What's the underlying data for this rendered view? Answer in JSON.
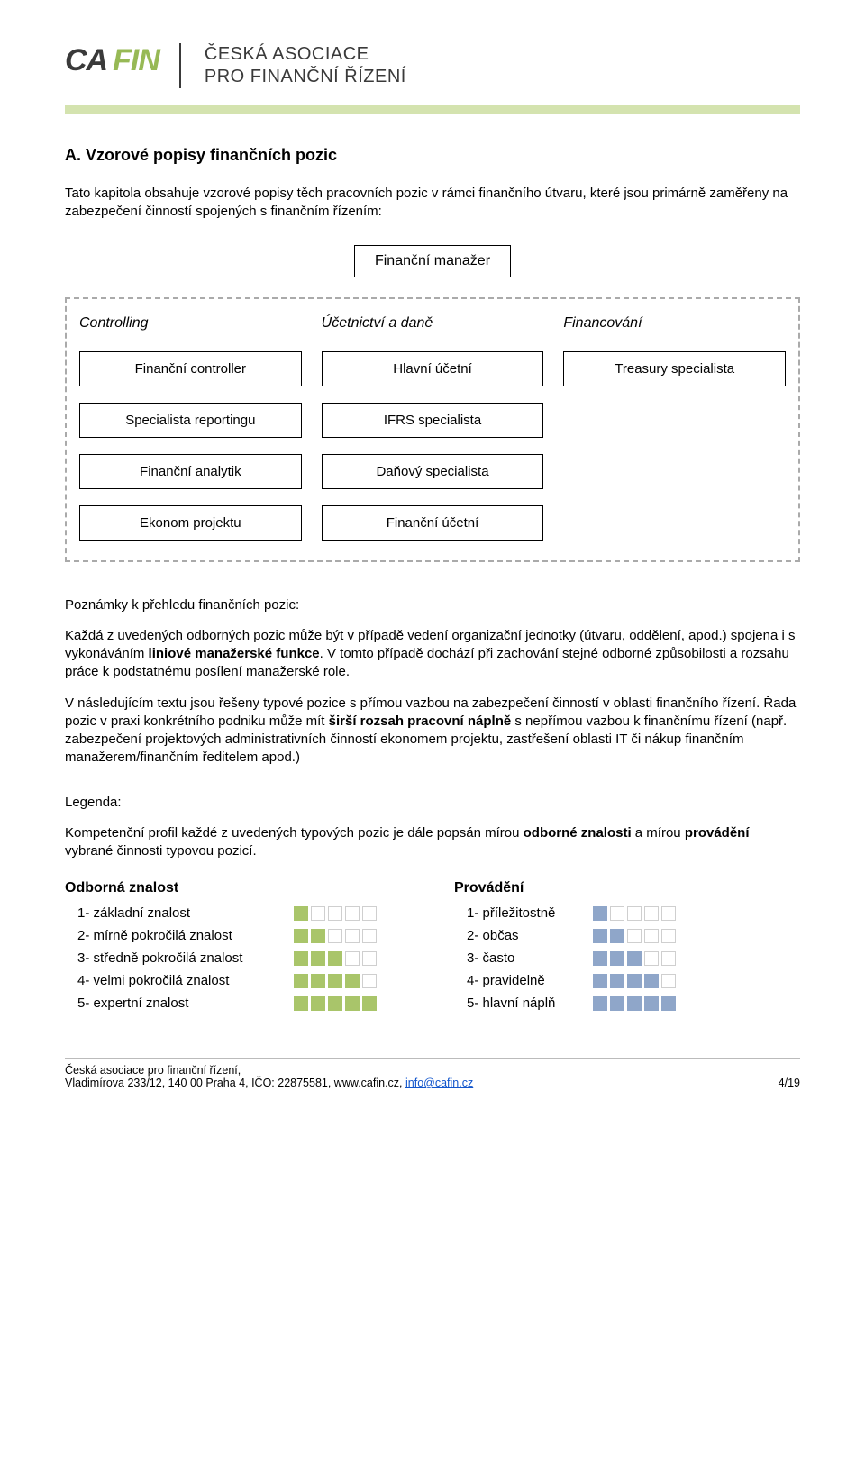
{
  "header": {
    "logo_ca": "CA",
    "logo_fin": "FIN",
    "org_line1": "ČESKÁ ASOCIACE",
    "org_line2": "PRO FINANČNÍ ŘÍZENÍ"
  },
  "section": {
    "heading": "A. Vzorové popisy finančních pozic",
    "intro": "Tato kapitola obsahuje vzorové popisy těch pracovních pozic v rámci finančního útvaru, které jsou primárně zaměřeny na zabezpečení činností spojených s finančním řízením:"
  },
  "orgchart": {
    "top": "Finanční manažer",
    "columns": [
      {
        "heading": "Controlling",
        "items": [
          "Finanční controller",
          "Specialista reportingu",
          "Finanční analytik",
          "Ekonom projektu"
        ]
      },
      {
        "heading": "Účetnictví a daně",
        "items": [
          "Hlavní účetní",
          "IFRS specialista",
          "Daňový specialista",
          "Finanční účetní"
        ]
      },
      {
        "heading": "Financování",
        "items": [
          "Treasury specialista"
        ]
      }
    ]
  },
  "notes": {
    "label": "Poznámky k přehledu finančních pozic:",
    "p1_a": "Každá z uvedených odborných pozic může být v případě vedení organizační jednotky (útvaru, oddělení, apod.) spojena i s vykonáváním ",
    "p1_b_bold": "liniové manažerské funkce",
    "p1_c": ". V tomto případě dochází při zachování stejné odborné způsobilosti a rozsahu práce k podstatnému posílení manažerské role.",
    "p2_a": "V následujícím textu jsou řešeny typové pozice s přímou vazbou na zabezpečení činností v oblasti finančního řízení. Řada pozic v praxi konkrétního podniku může mít ",
    "p2_b_bold": "širší rozsah pracovní náplně",
    "p2_c": " s nepřímou vazbou k finančnímu řízení (např. zabezpečení projektových administrativních činností ekonomem projektu, zastřešení oblasti IT či nákup finančním manažerem/finančním ředitelem apod.)"
  },
  "legend_section": {
    "heading": "Legenda:",
    "intro_a": "Kompetenční profil každé z uvedených typových pozic je dále popsán mírou ",
    "intro_b_bold": "odborné znalosti",
    "intro_c": " a mírou ",
    "intro_d_bold": "provádění",
    "intro_e": " vybrané činnosti typovou pozicí."
  },
  "legend": {
    "left_title": "Odborná znalost",
    "right_title": "Provádění",
    "left_items": [
      {
        "label": "1- základní znalost",
        "filled": 1
      },
      {
        "label": "2- mírně pokročilá znalost",
        "filled": 2
      },
      {
        "label": "3- středně pokročilá znalost",
        "filled": 3
      },
      {
        "label": "4- velmi pokročilá znalost",
        "filled": 4
      },
      {
        "label": "5- expertní znalost",
        "filled": 5
      }
    ],
    "right_items": [
      {
        "label": "1- příležitostně",
        "filled": 1
      },
      {
        "label": "2- občas",
        "filled": 2
      },
      {
        "label": "3- často",
        "filled": 3
      },
      {
        "label": "4- pravidelně",
        "filled": 4
      },
      {
        "label": "5- hlavní náplň",
        "filled": 5
      }
    ],
    "left_color": "#a9c56a",
    "right_color": "#8fa6c9",
    "empty_border": "#cfcfcf"
  },
  "footer": {
    "line1": "Česká asociace pro finanční řízení,",
    "line2_a": "Vladimírova 233/12, 140 00 Praha 4, IČO: 22875581, www.cafin.cz, ",
    "line2_link": "info@cafin.cz",
    "page": "4/19"
  }
}
